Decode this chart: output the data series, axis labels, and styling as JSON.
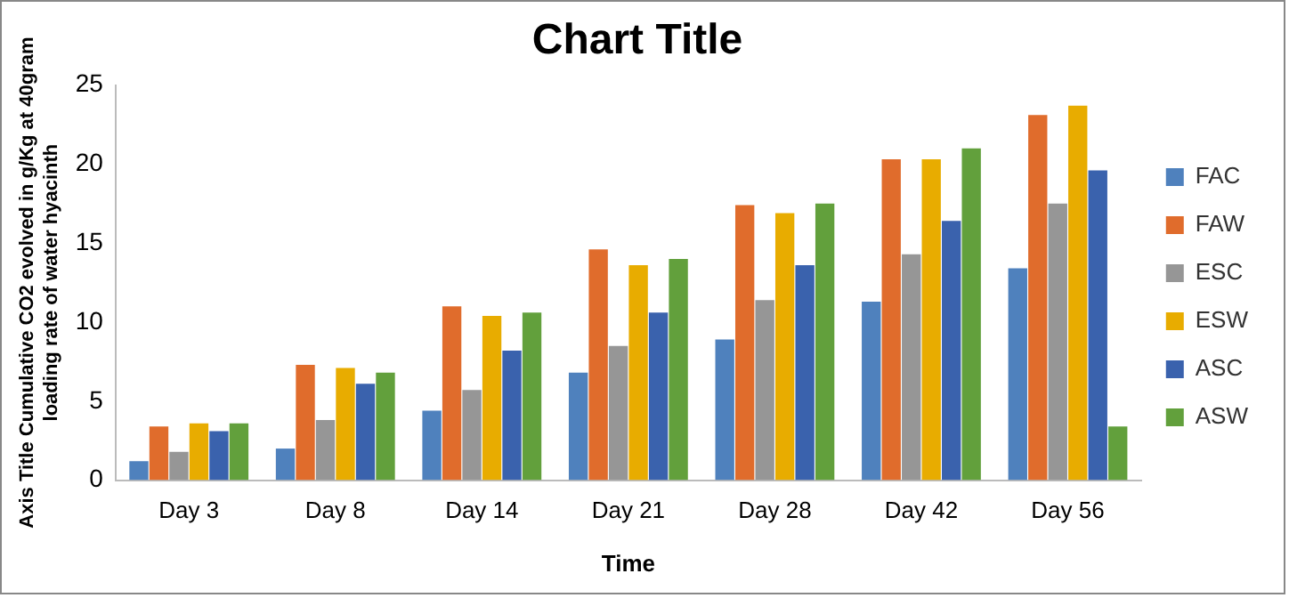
{
  "chart_data": {
    "type": "bar",
    "title": "Chart Title",
    "xlabel": "Time",
    "ylabel": "Axis Title Cumulative CO2 evolved in g/Kg at 40gram loading rate of water hyacinth",
    "categories": [
      "Day 3",
      "Day 8",
      "Day 14",
      "Day 21",
      "Day 28",
      "Day 42",
      "Day 56"
    ],
    "series": [
      {
        "name": "FAC",
        "color": "#4f81bd",
        "values": [
          1.2,
          2.0,
          4.4,
          6.8,
          8.9,
          11.3,
          13.4
        ]
      },
      {
        "name": "FAW",
        "color": "#e06c2c",
        "values": [
          3.4,
          7.3,
          11.0,
          14.6,
          17.4,
          20.3,
          23.1
        ]
      },
      {
        "name": "ESC",
        "color": "#969696",
        "values": [
          1.8,
          3.8,
          5.7,
          8.5,
          11.4,
          14.3,
          17.5
        ]
      },
      {
        "name": "ESW",
        "color": "#e8ac00",
        "values": [
          3.6,
          7.1,
          10.4,
          13.6,
          16.9,
          20.3,
          23.7
        ]
      },
      {
        "name": "ASC",
        "color": "#3a62ad",
        "values": [
          3.1,
          6.1,
          8.2,
          10.6,
          13.6,
          16.4,
          19.6
        ]
      },
      {
        "name": "ASW",
        "color": "#62a03c",
        "values": [
          3.6,
          6.8,
          10.6,
          14.0,
          17.5,
          21.0,
          3.4
        ]
      }
    ],
    "ylim": [
      0,
      25
    ],
    "yticks": [
      0,
      5,
      10,
      15,
      20,
      25
    ],
    "grid": false,
    "legend": "right"
  }
}
